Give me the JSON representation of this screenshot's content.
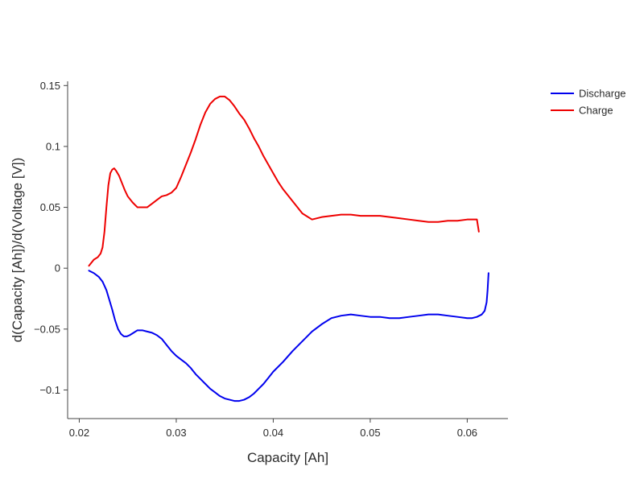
{
  "chart_data": {
    "type": "line",
    "title": "",
    "xlabel": "Capacity [Ah]",
    "ylabel": "d(Capacity [Ah])/d(Voltage [V])",
    "xlim": [
      0.0188,
      0.0642
    ],
    "ylim": [
      -0.1235,
      0.1535
    ],
    "x_ticks": [
      0.02,
      0.03,
      0.04,
      0.05,
      0.06
    ],
    "x_tick_labels": [
      "0.02",
      "0.03",
      "0.04",
      "0.05",
      "0.06"
    ],
    "y_ticks": [
      -0.1,
      -0.05,
      0,
      0.05,
      0.1,
      0.15
    ],
    "y_tick_labels": [
      "−0.1",
      "−0.05",
      "0",
      "0.05",
      "0.1",
      "0.15"
    ],
    "grid": false,
    "legend_position": "top-right",
    "series": [
      {
        "name": "Discharge",
        "color": "#0000ee",
        "x": [
          0.021,
          0.0215,
          0.022,
          0.0224,
          0.0228,
          0.0231,
          0.0234,
          0.0237,
          0.024,
          0.0243,
          0.0246,
          0.0249,
          0.0252,
          0.0256,
          0.026,
          0.0265,
          0.027,
          0.0275,
          0.028,
          0.0285,
          0.029,
          0.0295,
          0.03,
          0.0305,
          0.031,
          0.0315,
          0.032,
          0.0325,
          0.033,
          0.0335,
          0.034,
          0.0345,
          0.035,
          0.0355,
          0.036,
          0.0365,
          0.037,
          0.0375,
          0.038,
          0.0385,
          0.039,
          0.0395,
          0.04,
          0.041,
          0.042,
          0.043,
          0.044,
          0.045,
          0.046,
          0.047,
          0.048,
          0.049,
          0.05,
          0.051,
          0.052,
          0.053,
          0.054,
          0.055,
          0.056,
          0.057,
          0.058,
          0.059,
          0.06,
          0.0605,
          0.061,
          0.0615,
          0.0618,
          0.062,
          0.0621,
          0.0622
        ],
        "values": [
          -0.002,
          -0.004,
          -0.007,
          -0.011,
          -0.018,
          -0.026,
          -0.034,
          -0.043,
          -0.05,
          -0.054,
          -0.056,
          -0.056,
          -0.055,
          -0.053,
          -0.051,
          -0.051,
          -0.052,
          -0.053,
          -0.055,
          -0.058,
          -0.063,
          -0.068,
          -0.072,
          -0.075,
          -0.078,
          -0.082,
          -0.087,
          -0.091,
          -0.095,
          -0.099,
          -0.102,
          -0.105,
          -0.107,
          -0.108,
          -0.109,
          -0.109,
          -0.108,
          -0.106,
          -0.103,
          -0.099,
          -0.095,
          -0.09,
          -0.085,
          -0.077,
          -0.068,
          -0.06,
          -0.052,
          -0.046,
          -0.041,
          -0.039,
          -0.038,
          -0.039,
          -0.04,
          -0.04,
          -0.041,
          -0.041,
          -0.04,
          -0.039,
          -0.038,
          -0.038,
          -0.039,
          -0.04,
          -0.041,
          -0.041,
          -0.04,
          -0.038,
          -0.035,
          -0.028,
          -0.018,
          -0.004
        ]
      },
      {
        "name": "Charge",
        "color": "#ee0000",
        "x": [
          0.021,
          0.0212,
          0.0215,
          0.0219,
          0.0222,
          0.0224,
          0.0226,
          0.0228,
          0.023,
          0.0232,
          0.0234,
          0.0236,
          0.0238,
          0.0241,
          0.0244,
          0.0247,
          0.025,
          0.0255,
          0.026,
          0.0265,
          0.027,
          0.0275,
          0.028,
          0.0285,
          0.029,
          0.0295,
          0.03,
          0.0305,
          0.031,
          0.0315,
          0.032,
          0.0325,
          0.033,
          0.0335,
          0.034,
          0.0345,
          0.035,
          0.0355,
          0.036,
          0.0365,
          0.037,
          0.0375,
          0.038,
          0.0385,
          0.039,
          0.0395,
          0.04,
          0.0405,
          0.041,
          0.042,
          0.043,
          0.044,
          0.045,
          0.046,
          0.047,
          0.048,
          0.049,
          0.05,
          0.051,
          0.052,
          0.053,
          0.054,
          0.055,
          0.056,
          0.057,
          0.058,
          0.059,
          0.06,
          0.0605,
          0.0608,
          0.061,
          0.0611,
          0.0612
        ],
        "values": [
          0.002,
          0.004,
          0.007,
          0.009,
          0.012,
          0.017,
          0.03,
          0.05,
          0.068,
          0.078,
          0.081,
          0.082,
          0.08,
          0.076,
          0.07,
          0.064,
          0.059,
          0.054,
          0.05,
          0.05,
          0.05,
          0.053,
          0.056,
          0.059,
          0.06,
          0.062,
          0.066,
          0.075,
          0.085,
          0.095,
          0.106,
          0.118,
          0.128,
          0.135,
          0.139,
          0.141,
          0.141,
          0.138,
          0.133,
          0.127,
          0.122,
          0.115,
          0.107,
          0.1,
          0.092,
          0.085,
          0.078,
          0.071,
          0.065,
          0.055,
          0.045,
          0.04,
          0.042,
          0.043,
          0.044,
          0.044,
          0.043,
          0.043,
          0.043,
          0.042,
          0.041,
          0.04,
          0.039,
          0.038,
          0.038,
          0.039,
          0.039,
          0.04,
          0.04,
          0.04,
          0.04,
          0.035,
          0.03
        ]
      }
    ]
  }
}
